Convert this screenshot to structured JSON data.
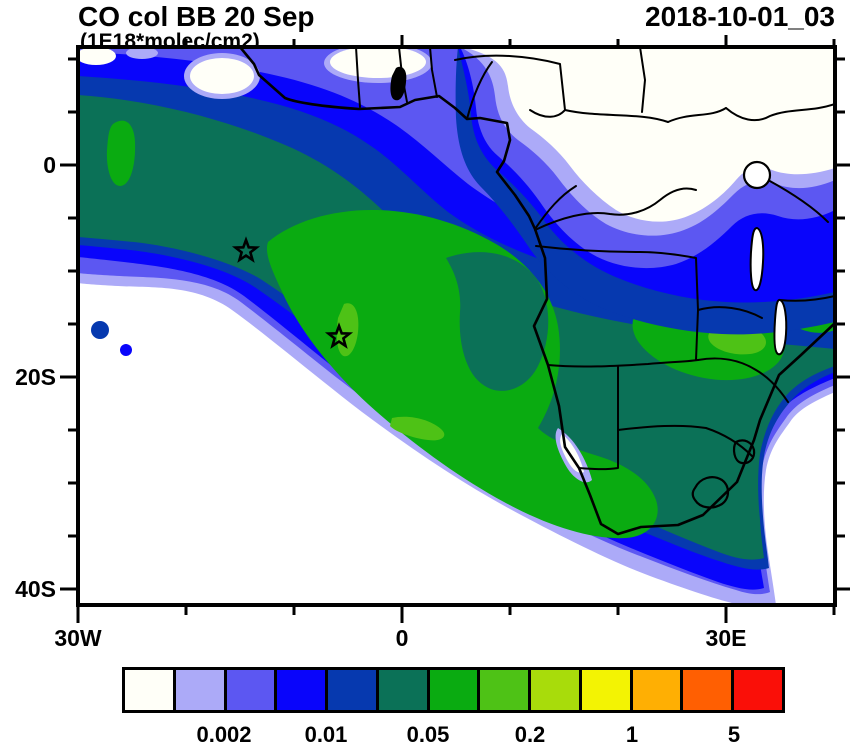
{
  "header": {
    "title": "CO col BB 20 Sep",
    "units": "(1E18*molec/cm2)",
    "timestamp": "2018-10-01_03"
  },
  "map": {
    "y_ticks": [
      "0",
      "20S",
      "40S"
    ],
    "x_ticks": [
      "30W",
      "0",
      "30E"
    ],
    "markers": [
      {
        "type": "star",
        "approx_lon": "14.5W",
        "approx_lat": "8S"
      },
      {
        "type": "star",
        "approx_lon": "6W",
        "approx_lat": "16S"
      }
    ]
  },
  "colorbar": {
    "labels": [
      "0.002",
      "0.01",
      "0.05",
      "0.2",
      "1",
      "5"
    ],
    "colors": [
      "#FFFFF8",
      "#ACAAF8",
      "#5C57F2",
      "#0905FB",
      "#0639AF",
      "#0B7157",
      "#0AAB11",
      "#4EC216",
      "#A8DC0B",
      "#F3F303",
      "#FFAF03",
      "#FF5F02",
      "#FA0F08"
    ]
  },
  "chart_data": {
    "type": "heatmap",
    "subtype": "filled-contour geographic map",
    "title": "CO col BB 20 Sep",
    "units_label": "(1E18*molec/cm2)",
    "timestamp_label": "2018-10-01_03",
    "lon_range_deg": [
      -30,
      40
    ],
    "lat_range_deg": [
      -42,
      11
    ],
    "x_tick_labels": [
      "30W",
      "0",
      "30E"
    ],
    "y_tick_labels": [
      "0",
      "20S",
      "40S"
    ],
    "colorbar_labeled_boundaries": [
      0.002,
      0.01,
      0.05,
      0.2,
      1,
      5
    ],
    "n_color_cells": 13,
    "palette_hex": [
      "#FFFFF8",
      "#ACAAF8",
      "#5C57F2",
      "#0905FB",
      "#0639AF",
      "#0B7157",
      "#0AAB11",
      "#4EC216",
      "#A8DC0B",
      "#F3F303",
      "#FFAF03",
      "#FF5F02",
      "#FA0F08"
    ],
    "markers_lonlat": [
      [
        -14.5,
        -8.0
      ],
      [
        -6.0,
        -16.0
      ]
    ],
    "visible_features": [
      "High-CO biomass-burning plume (green, ~0.1-0.5) arcing over the SE Atlantic from the Angola/Namibia coast toward 15W, with a teal curl inside it",
      "Broad moderate-CO field (teal, ~0.02-0.1) over tropical Atlantic and central/southern Africa",
      "Low-CO blue/lavender bands (0.001-0.01) along the Gulf of Guinea, Sahel, East Africa and around plume edges",
      "Near-zero (white) regions: NE quadrant over Chad/Sudan/CAR, SW Atlantic corner, SE Indian-Ocean corner",
      "Green patches over Zambia/Zimbabwe and a small patch near 27W at the equator",
      "Two star markers in the SE Atlantic plume region"
    ],
    "legend_position": "bottom",
    "grid": false
  }
}
